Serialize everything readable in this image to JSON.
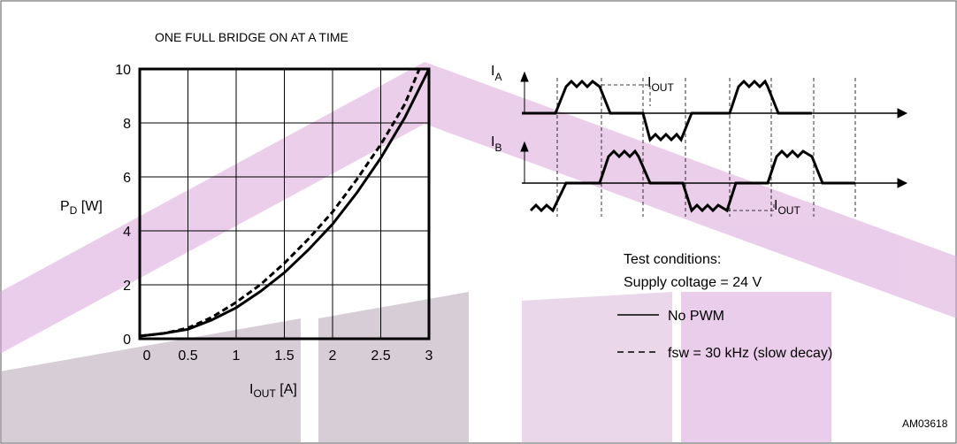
{
  "chart_data": {
    "type": "line",
    "title": "ONE FULL BRIDGE ON AT A TIME",
    "y_label": [
      "P",
      "D",
      " [W]"
    ],
    "x_label": [
      "I",
      "OUT",
      " [A]"
    ],
    "xlim": [
      0,
      3
    ],
    "xticks": [
      0,
      0.5,
      1,
      1.5,
      2,
      2.5,
      3
    ],
    "ylim": [
      0,
      10
    ],
    "yticks": [
      0,
      2,
      4,
      6,
      8,
      10
    ],
    "grid": true,
    "series": [
      {
        "name": "No PWM",
        "color": "#000000",
        "dash": false,
        "x": [
          0,
          0.25,
          0.5,
          0.75,
          1,
          1.25,
          1.5,
          1.75,
          2,
          2.25,
          2.5,
          2.75,
          3
        ],
        "values": [
          0.1,
          0.2,
          0.35,
          0.7,
          1.15,
          1.75,
          2.45,
          3.3,
          4.25,
          5.4,
          6.7,
          8.2,
          10
        ]
      },
      {
        "name": "fsw = 30 kHz (slow decay)",
        "color": "#000000",
        "dash": true,
        "x": [
          0,
          0.25,
          0.5,
          0.75,
          1,
          1.25,
          1.5,
          1.75,
          2,
          2.25,
          2.5,
          2.75,
          2.9
        ],
        "values": [
          0.1,
          0.2,
          0.4,
          0.8,
          1.35,
          2.0,
          2.8,
          3.7,
          4.7,
          5.9,
          7.2,
          8.7,
          10
        ]
      }
    ],
    "annotations": {
      "conditions": "Test conditions:",
      "supply": "Supply coltage = 24 V",
      "code": "AM03618"
    },
    "wave_labels": {
      "ia": [
        "I",
        "A"
      ],
      "ib": [
        "I",
        "B"
      ],
      "iout_a": [
        "I",
        "OUT"
      ],
      "iout_b": [
        "I",
        "OUT"
      ]
    }
  }
}
